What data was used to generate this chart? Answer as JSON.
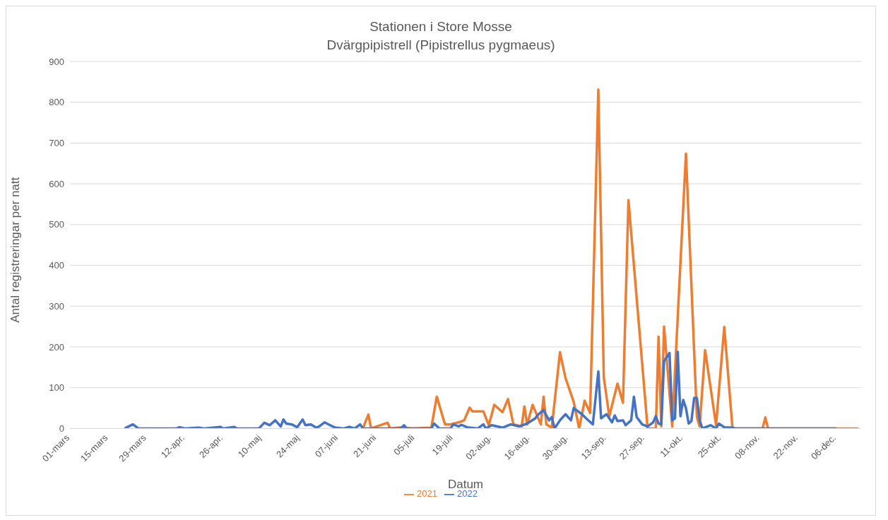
{
  "chart_data": {
    "type": "line",
    "title": "Stationen i Store Mosse",
    "subtitle": "Dvärgpipistrell (Pipistrellus pygmaeus)",
    "xlabel": "Datum",
    "ylabel": "Antal registreringar per natt",
    "xlim": [
      "--03-01",
      "--12-15"
    ],
    "xticks": [
      {
        "value": "--03-01",
        "label": "01-mars"
      },
      {
        "value": "--03-15",
        "label": "15-mars"
      },
      {
        "value": "--03-29",
        "label": "29-mars"
      },
      {
        "value": "--04-12",
        "label": "12-apr."
      },
      {
        "value": "--04-26",
        "label": "26-apr."
      },
      {
        "value": "--05-10",
        "label": "10-maj"
      },
      {
        "value": "--05-24",
        "label": "24-maj"
      },
      {
        "value": "--06-07",
        "label": "07-juni"
      },
      {
        "value": "--06-21",
        "label": "21-juni"
      },
      {
        "value": "--07-05",
        "label": "05-juli"
      },
      {
        "value": "--07-19",
        "label": "19-juli"
      },
      {
        "value": "--08-02",
        "label": "02-aug."
      },
      {
        "value": "--08-16",
        "label": "16-aug."
      },
      {
        "value": "--08-30",
        "label": "30-aug."
      },
      {
        "value": "--09-13",
        "label": "13-sep."
      },
      {
        "value": "--09-27",
        "label": "27-sep."
      },
      {
        "value": "--10-11",
        "label": "11-okt."
      },
      {
        "value": "--10-25",
        "label": "25-okt."
      },
      {
        "value": "--11-08",
        "label": "08-nov."
      },
      {
        "value": "--11-22",
        "label": "22-nov."
      },
      {
        "value": "--12-06",
        "label": "06-dec."
      }
    ],
    "ylim": [
      0,
      900
    ],
    "yticks": [
      0,
      100,
      200,
      300,
      400,
      500,
      600,
      700,
      800,
      900
    ],
    "grid": "y",
    "legend": "bottom",
    "marker": "none",
    "line_style": "solid",
    "series": [
      {
        "name": "2021",
        "color": "#ed7d31",
        "x": [
          "--06-16",
          "--06-18",
          "--06-19",
          "--06-21",
          "--06-25",
          "--06-26",
          "--06-30",
          "--07-04",
          "--07-11",
          "--07-13",
          "--07-16",
          "--07-18",
          "--07-21",
          "--07-23",
          "--07-25",
          "--07-26",
          "--07-30",
          "--08-01",
          "--08-03",
          "--08-06",
          "--08-08",
          "--08-10",
          "--08-13",
          "--08-14",
          "--08-15",
          "--08-17",
          "--08-20",
          "--08-21",
          "--08-22",
          "--08-24",
          "--08-27",
          "--08-29",
          "--09-01",
          "--09-03",
          "--09-05",
          "--09-07",
          "--09-10",
          "--09-12",
          "--09-14",
          "--09-17",
          "--09-19",
          "--09-21",
          "--09-28",
          "--10-01",
          "--10-02",
          "--10-03",
          "--10-04",
          "--10-07",
          "--10-12",
          "--10-16",
          "--10-17",
          "--10-19",
          "--10-23",
          "--10-26",
          "--10-29",
          "--11-09",
          "--11-10",
          "--11-11",
          "--12-14"
        ],
        "values": [
          0,
          34,
          0,
          5,
          14,
          0,
          3,
          0,
          2,
          78,
          10,
          10,
          15,
          20,
          51,
          42,
          42,
          8,
          58,
          40,
          72,
          10,
          5,
          54,
          10,
          58,
          10,
          78,
          10,
          2,
          187,
          124,
          65,
          0,
          68,
          38,
          831,
          125,
          30,
          110,
          63,
          560,
          0,
          0,
          225,
          5,
          250,
          5,
          674,
          28,
          5,
          192,
          8,
          249,
          0,
          0,
          27,
          0,
          0
        ]
      },
      {
        "name": "2022",
        "color": "#4472c4",
        "x": [
          "--03-21",
          "--03-24",
          "--03-26",
          "--04-09",
          "--04-10",
          "--04-12",
          "--04-17",
          "--04-19",
          "--04-25",
          "--04-26",
          "--04-30",
          "--05-01",
          "--05-09",
          "--05-11",
          "--05-13",
          "--05-15",
          "--05-17",
          "--05-18",
          "--05-19",
          "--05-21",
          "--05-23",
          "--05-25",
          "--05-26",
          "--05-28",
          "--05-30",
          "--05-31",
          "--06-02",
          "--06-04",
          "--06-06",
          "--06-09",
          "--06-11",
          "--06-13",
          "--06-15",
          "--06-16",
          "--06-30",
          "--07-01",
          "--07-02",
          "--07-11",
          "--07-12",
          "--07-14",
          "--07-18",
          "--07-19",
          "--07-21",
          "--07-22",
          "--07-24",
          "--07-28",
          "--07-30",
          "--07-31",
          "--08-02",
          "--08-06",
          "--08-09",
          "--08-12",
          "--08-15",
          "--08-18",
          "--08-19",
          "--08-21",
          "--08-23",
          "--08-24",
          "--08-25",
          "--08-27",
          "--08-29",
          "--08-31",
          "--09-01",
          "--09-04",
          "--09-06",
          "--09-08",
          "--09-10",
          "--09-11",
          "--09-13",
          "--09-15",
          "--09-16",
          "--09-17",
          "--09-19",
          "--09-20",
          "--09-22",
          "--09-23",
          "--09-24",
          "--09-26",
          "--09-28",
          "--09-30",
          "--10-01",
          "--10-02",
          "--10-03",
          "--10-04",
          "--10-06",
          "--10-07",
          "--10-08",
          "--10-09",
          "--10-10",
          "--10-11",
          "--10-12",
          "--10-13",
          "--10-14",
          "--10-15",
          "--10-16",
          "--10-17",
          "--10-18",
          "--10-21",
          "--10-23",
          "--10-24",
          "--10-26",
          "--10-29",
          "--10-30",
          "--12-06"
        ],
        "values": [
          0,
          10,
          0,
          0,
          3,
          0,
          2,
          0,
          4,
          0,
          4,
          0,
          0,
          14,
          8,
          20,
          5,
          22,
          12,
          10,
          3,
          22,
          8,
          10,
          2,
          5,
          15,
          8,
          2,
          0,
          4,
          0,
          10,
          0,
          0,
          8,
          0,
          0,
          12,
          0,
          0,
          10,
          5,
          9,
          3,
          0,
          10,
          0,
          8,
          2,
          10,
          5,
          12,
          25,
          34,
          45,
          20,
          28,
          0,
          20,
          35,
          20,
          50,
          35,
          22,
          10,
          140,
          25,
          35,
          15,
          32,
          18,
          20,
          8,
          20,
          78,
          28,
          10,
          5,
          15,
          30,
          12,
          10,
          165,
          185,
          20,
          25,
          188,
          30,
          70,
          50,
          12,
          18,
          75,
          75,
          20,
          0,
          8,
          0,
          12,
          3,
          2,
          0,
          0
        ]
      }
    ]
  }
}
